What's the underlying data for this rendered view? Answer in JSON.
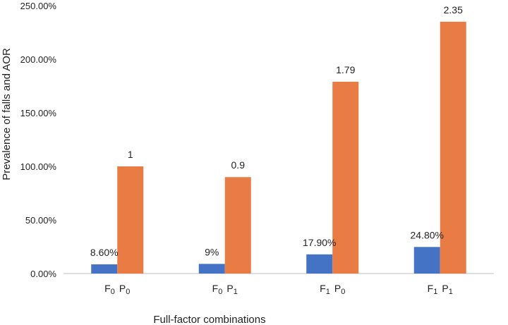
{
  "chart_data": {
    "type": "bar",
    "title": "",
    "xlabel": "Full-factor combinations",
    "ylabel": "Prevalence of falls and AOR",
    "ylim": [
      0,
      250
    ],
    "yticks": [
      0,
      50,
      100,
      150,
      200,
      250
    ],
    "ytick_labels": [
      "0.00%",
      "50.00%",
      "100.00%",
      "150.00%",
      "200.00%",
      "250.00%"
    ],
    "categories": [
      {
        "f_sub": "0",
        "p_sub": "0"
      },
      {
        "f_sub": "0",
        "p_sub": "1"
      },
      {
        "f_sub": "1",
        "p_sub": "0"
      },
      {
        "f_sub": "1",
        "p_sub": "1"
      }
    ],
    "series": [
      {
        "name": "Prevalence of falls",
        "color": "#4472c4",
        "values": [
          8.6,
          9,
          17.9,
          24.8
        ],
        "labels": [
          "8.60%",
          "9%",
          "17.90%",
          "24.80%"
        ]
      },
      {
        "name": "AOR",
        "color": "#e97b45",
        "values": [
          100,
          90,
          179,
          235
        ],
        "labels": [
          "1",
          "0.9",
          "1.79",
          "2.35"
        ]
      }
    ],
    "grid": false,
    "legend": "none"
  }
}
